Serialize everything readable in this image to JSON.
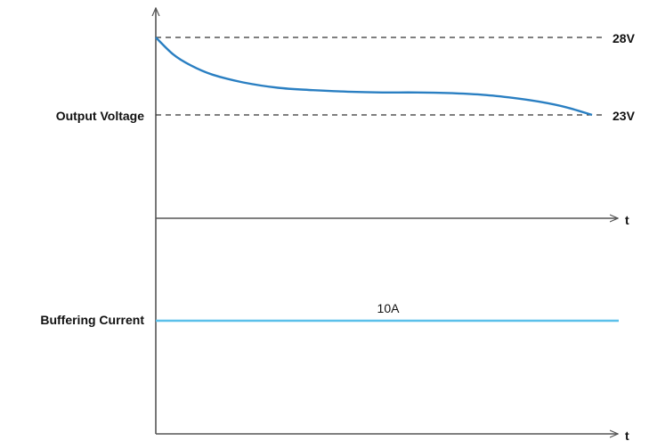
{
  "chart_data": {
    "type": "line",
    "grid": false,
    "panels": [
      {
        "ylabel": "Output Voltage",
        "xlabel": "t",
        "reference_lines": [
          {
            "value": 28,
            "label": "28V"
          },
          {
            "value": 23,
            "label": "23V"
          }
        ],
        "series": [
          {
            "x": [
              0,
              0.04,
              0.08,
              0.13,
              0.2,
              0.28,
              0.36,
              0.44,
              0.52,
              0.6,
              0.68,
              0.75,
              0.82,
              0.88,
              0.94,
              1.0
            ],
            "y": [
              28,
              26.9,
              26.2,
              25.6,
              25.1,
              24.75,
              24.6,
              24.5,
              24.45,
              24.45,
              24.4,
              24.3,
              24.1,
              23.85,
              23.5,
              23
            ]
          }
        ],
        "color": "#2a7fc2"
      },
      {
        "ylabel": "Buffering Current",
        "xlabel": "t",
        "series": [
          {
            "x": [
              0,
              1.0
            ],
            "y": [
              10,
              10
            ],
            "label": "10A"
          }
        ],
        "color": "#5bc0ea"
      }
    ]
  }
}
